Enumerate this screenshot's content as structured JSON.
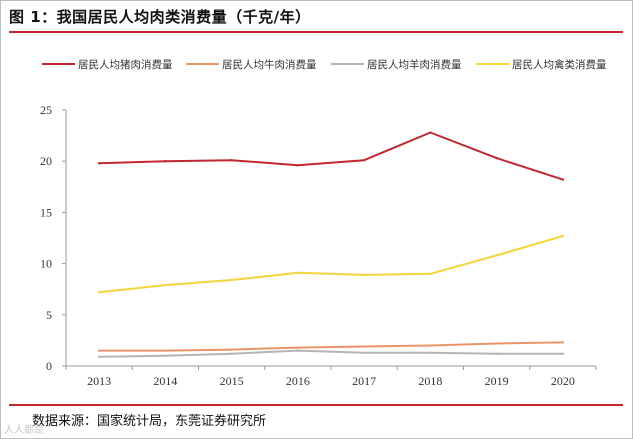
{
  "title": "图 1：我国居民人均肉类消费量（千克/年）",
  "source": "数据来源：国家统计局，东莞证券研究所",
  "watermark": "人人都是",
  "chart_data": {
    "type": "line",
    "x": [
      "2013",
      "2014",
      "2015",
      "2016",
      "2017",
      "2018",
      "2019",
      "2020"
    ],
    "ylim": [
      0,
      25
    ],
    "yticks": [
      0,
      5,
      10,
      15,
      20,
      25
    ],
    "grid": false,
    "legend_position": "top",
    "series": [
      {
        "name": "居民人均猪肉消费量",
        "color": "#c0282d",
        "values": [
          19.8,
          20.0,
          20.1,
          19.6,
          20.1,
          22.8,
          20.3,
          18.2
        ]
      },
      {
        "name": "居民人均牛肉消费量",
        "color": "#e8956b",
        "values": [
          1.5,
          1.5,
          1.6,
          1.8,
          1.9,
          2.0,
          2.2,
          2.3
        ]
      },
      {
        "name": "居民人均羊肉消费量",
        "color": "#b4b4b4",
        "values": [
          0.9,
          1.0,
          1.2,
          1.5,
          1.3,
          1.3,
          1.2,
          1.2
        ]
      },
      {
        "name": "居民人均禽类消费量",
        "color": "#f5d53a",
        "values": [
          7.2,
          7.9,
          8.4,
          9.1,
          8.9,
          9.0,
          10.8,
          12.7
        ]
      }
    ]
  }
}
